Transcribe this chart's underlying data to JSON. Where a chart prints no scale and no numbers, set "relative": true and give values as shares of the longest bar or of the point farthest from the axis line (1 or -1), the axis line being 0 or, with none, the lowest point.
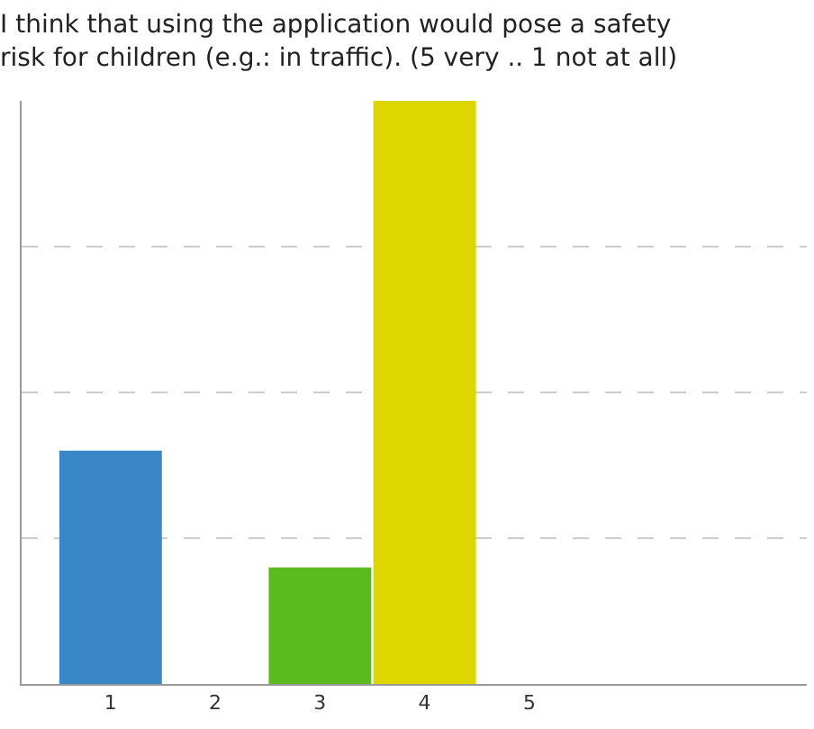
{
  "chart_data": {
    "type": "bar",
    "title": "I think that using the application would pose a safety\nrisk for children (e.g.: in traffic). (5 very .. 1 not at all)",
    "categories": [
      "1",
      "2",
      "3",
      "4",
      "5"
    ],
    "values": [
      0.4,
      0,
      0.2,
      1,
      0
    ],
    "colors": [
      "#3a87c8",
      "#e8763a",
      "#5bbb1e",
      "#ddd600",
      "#9fd89f"
    ],
    "relative": true,
    "grid": "y"
  }
}
